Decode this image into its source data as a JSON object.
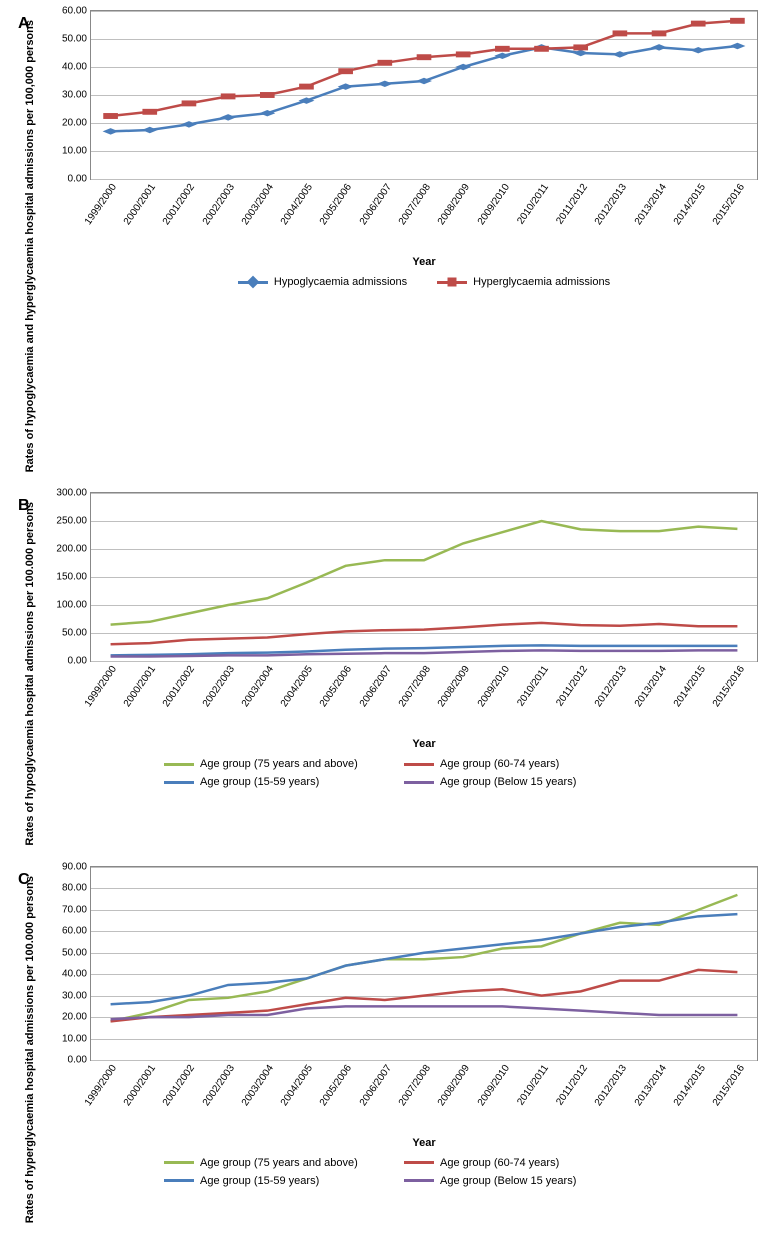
{
  "years": [
    "1999/2000",
    "2000/2001",
    "2001/2002",
    "2002/2003",
    "2003/2004",
    "2004/2005",
    "2005/2006",
    "2006/2007",
    "2007/2008",
    "2008/2009",
    "2009/2010",
    "2010/2011",
    "2011/2012",
    "2012/2013",
    "2013/2014",
    "2014/2015",
    "2015/2016"
  ],
  "x_label": "Year",
  "colors": {
    "blue": "#4a7ebb",
    "red": "#be4b48",
    "green": "#98b954",
    "purple": "#7d60a0",
    "grid": "#bfbfbf",
    "plot_border": "#888888",
    "plot_bg": "#ffffff"
  },
  "label_fontsize": 11,
  "tick_fontsize": 10,
  "panelA": {
    "label": "A",
    "y_label": "Rates of hypoglycaemia and hyperglycaemia hospital admissions per 100,000 persons",
    "ylim": [
      0,
      60
    ],
    "ytick_step": 10,
    "height": 170,
    "line_width": 2.5,
    "marker_size": 8,
    "series": [
      {
        "name": "Hypoglycaemia  admissions",
        "color": "blue",
        "marker": "diamond",
        "values": [
          17,
          17.5,
          19.5,
          22,
          23.5,
          28,
          33,
          34,
          35,
          40,
          44,
          47,
          45,
          44.5,
          47,
          46,
          47.5
        ]
      },
      {
        "name": "Hyperglycaemia admissions",
        "color": "red",
        "marker": "square",
        "values": [
          22.5,
          24,
          27,
          29.5,
          30,
          33,
          38.5,
          41.5,
          43.5,
          44.5,
          46.5,
          46.5,
          47,
          52,
          52,
          55.5,
          56.5
        ]
      }
    ]
  },
  "panelB": {
    "label": "B",
    "y_label": "Rates of hypoglycaemia hospital admissions per 100.000 persons",
    "ylim": [
      0,
      300
    ],
    "ytick_step": 50,
    "height": 170,
    "line_width": 2.5,
    "series": [
      {
        "name": "Age group (75 years and above)",
        "color": "green",
        "values": [
          65,
          70,
          85,
          100,
          112,
          140,
          170,
          180,
          180,
          210,
          230,
          250,
          235,
          232,
          232,
          240,
          236
        ]
      },
      {
        "name": "Age group (60-74 years)",
        "color": "red",
        "values": [
          30,
          32,
          38,
          40,
          42,
          48,
          53,
          55,
          56,
          60,
          65,
          68,
          64,
          63,
          66,
          62,
          62
        ]
      },
      {
        "name": "Age group (15-59 years)",
        "color": "blue",
        "values": [
          10,
          11,
          12,
          14,
          15,
          17,
          20,
          22,
          23,
          25,
          27,
          28,
          27,
          27,
          27,
          27,
          27
        ]
      },
      {
        "name": "Age group (Below 15 years)",
        "color": "purple",
        "values": [
          8,
          8,
          9,
          10,
          10,
          12,
          13,
          14,
          14,
          16,
          18,
          19,
          18,
          18,
          18,
          19,
          19
        ]
      }
    ]
  },
  "panelC": {
    "label": "C",
    "y_label": "Rates of hyperglycaemia hospital admissions per 100.000 persons",
    "ylim": [
      0,
      90
    ],
    "ytick_step": 10,
    "height": 195,
    "line_width": 2.5,
    "series": [
      {
        "name": "Age group (75 years and above)",
        "color": "green",
        "values": [
          18,
          22,
          28,
          29,
          32,
          38,
          44,
          47,
          47,
          48,
          52,
          53,
          59,
          64,
          63,
          70,
          77
        ]
      },
      {
        "name": "Age group (60-74 years)",
        "color": "red",
        "values": [
          18,
          20,
          21,
          22,
          23,
          26,
          29,
          28,
          30,
          32,
          33,
          30,
          32,
          37,
          37,
          42,
          41
        ]
      },
      {
        "name": "Age group (15-59 years)",
        "color": "blue",
        "values": [
          26,
          27,
          30,
          35,
          36,
          38,
          44,
          47,
          50,
          52,
          54,
          56,
          59,
          62,
          64,
          67,
          68
        ]
      },
      {
        "name": "Age group (Below 15 years)",
        "color": "purple",
        "values": [
          19,
          20,
          20,
          21,
          21,
          24,
          25,
          25,
          25,
          25,
          25,
          24,
          23,
          22,
          21,
          21,
          21
        ]
      }
    ]
  }
}
